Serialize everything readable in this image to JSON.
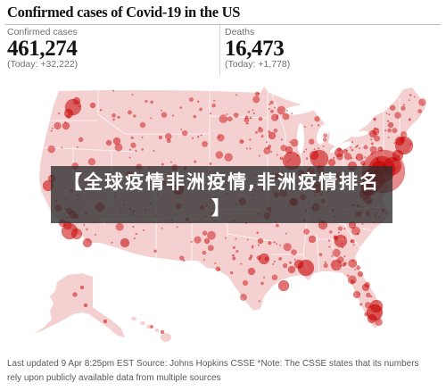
{
  "title": "Confirmed cases of Covid-19 in the US",
  "stats": [
    {
      "label": "Confirmed cases",
      "value": "461,274",
      "today": "(Today: +32,222)"
    },
    {
      "label": "Deaths",
      "value": "16,473",
      "today": "(Today: +1,778)"
    }
  ],
  "banner": {
    "text": "【全球疫情非洲疫情,非洲疫情排名】"
  },
  "footer": {
    "updated": "Last updated 9 Apr 8:25pm EST",
    "source": "Source: Johns Hopkins CSSE",
    "note": "*Note: The CSSE states that its numbers rely upon publicly available data from multiple sources"
  },
  "colors": {
    "text": "#121212",
    "muted": "#707070",
    "rule": "#d6d6d6",
    "background": "#ffffff",
    "map_fill": "#f4d0d0",
    "map_border": "#ffffff",
    "bubble": "#c70000",
    "banner_bg": "#2e2e2e",
    "banner_text": "#ffffff"
  }
}
